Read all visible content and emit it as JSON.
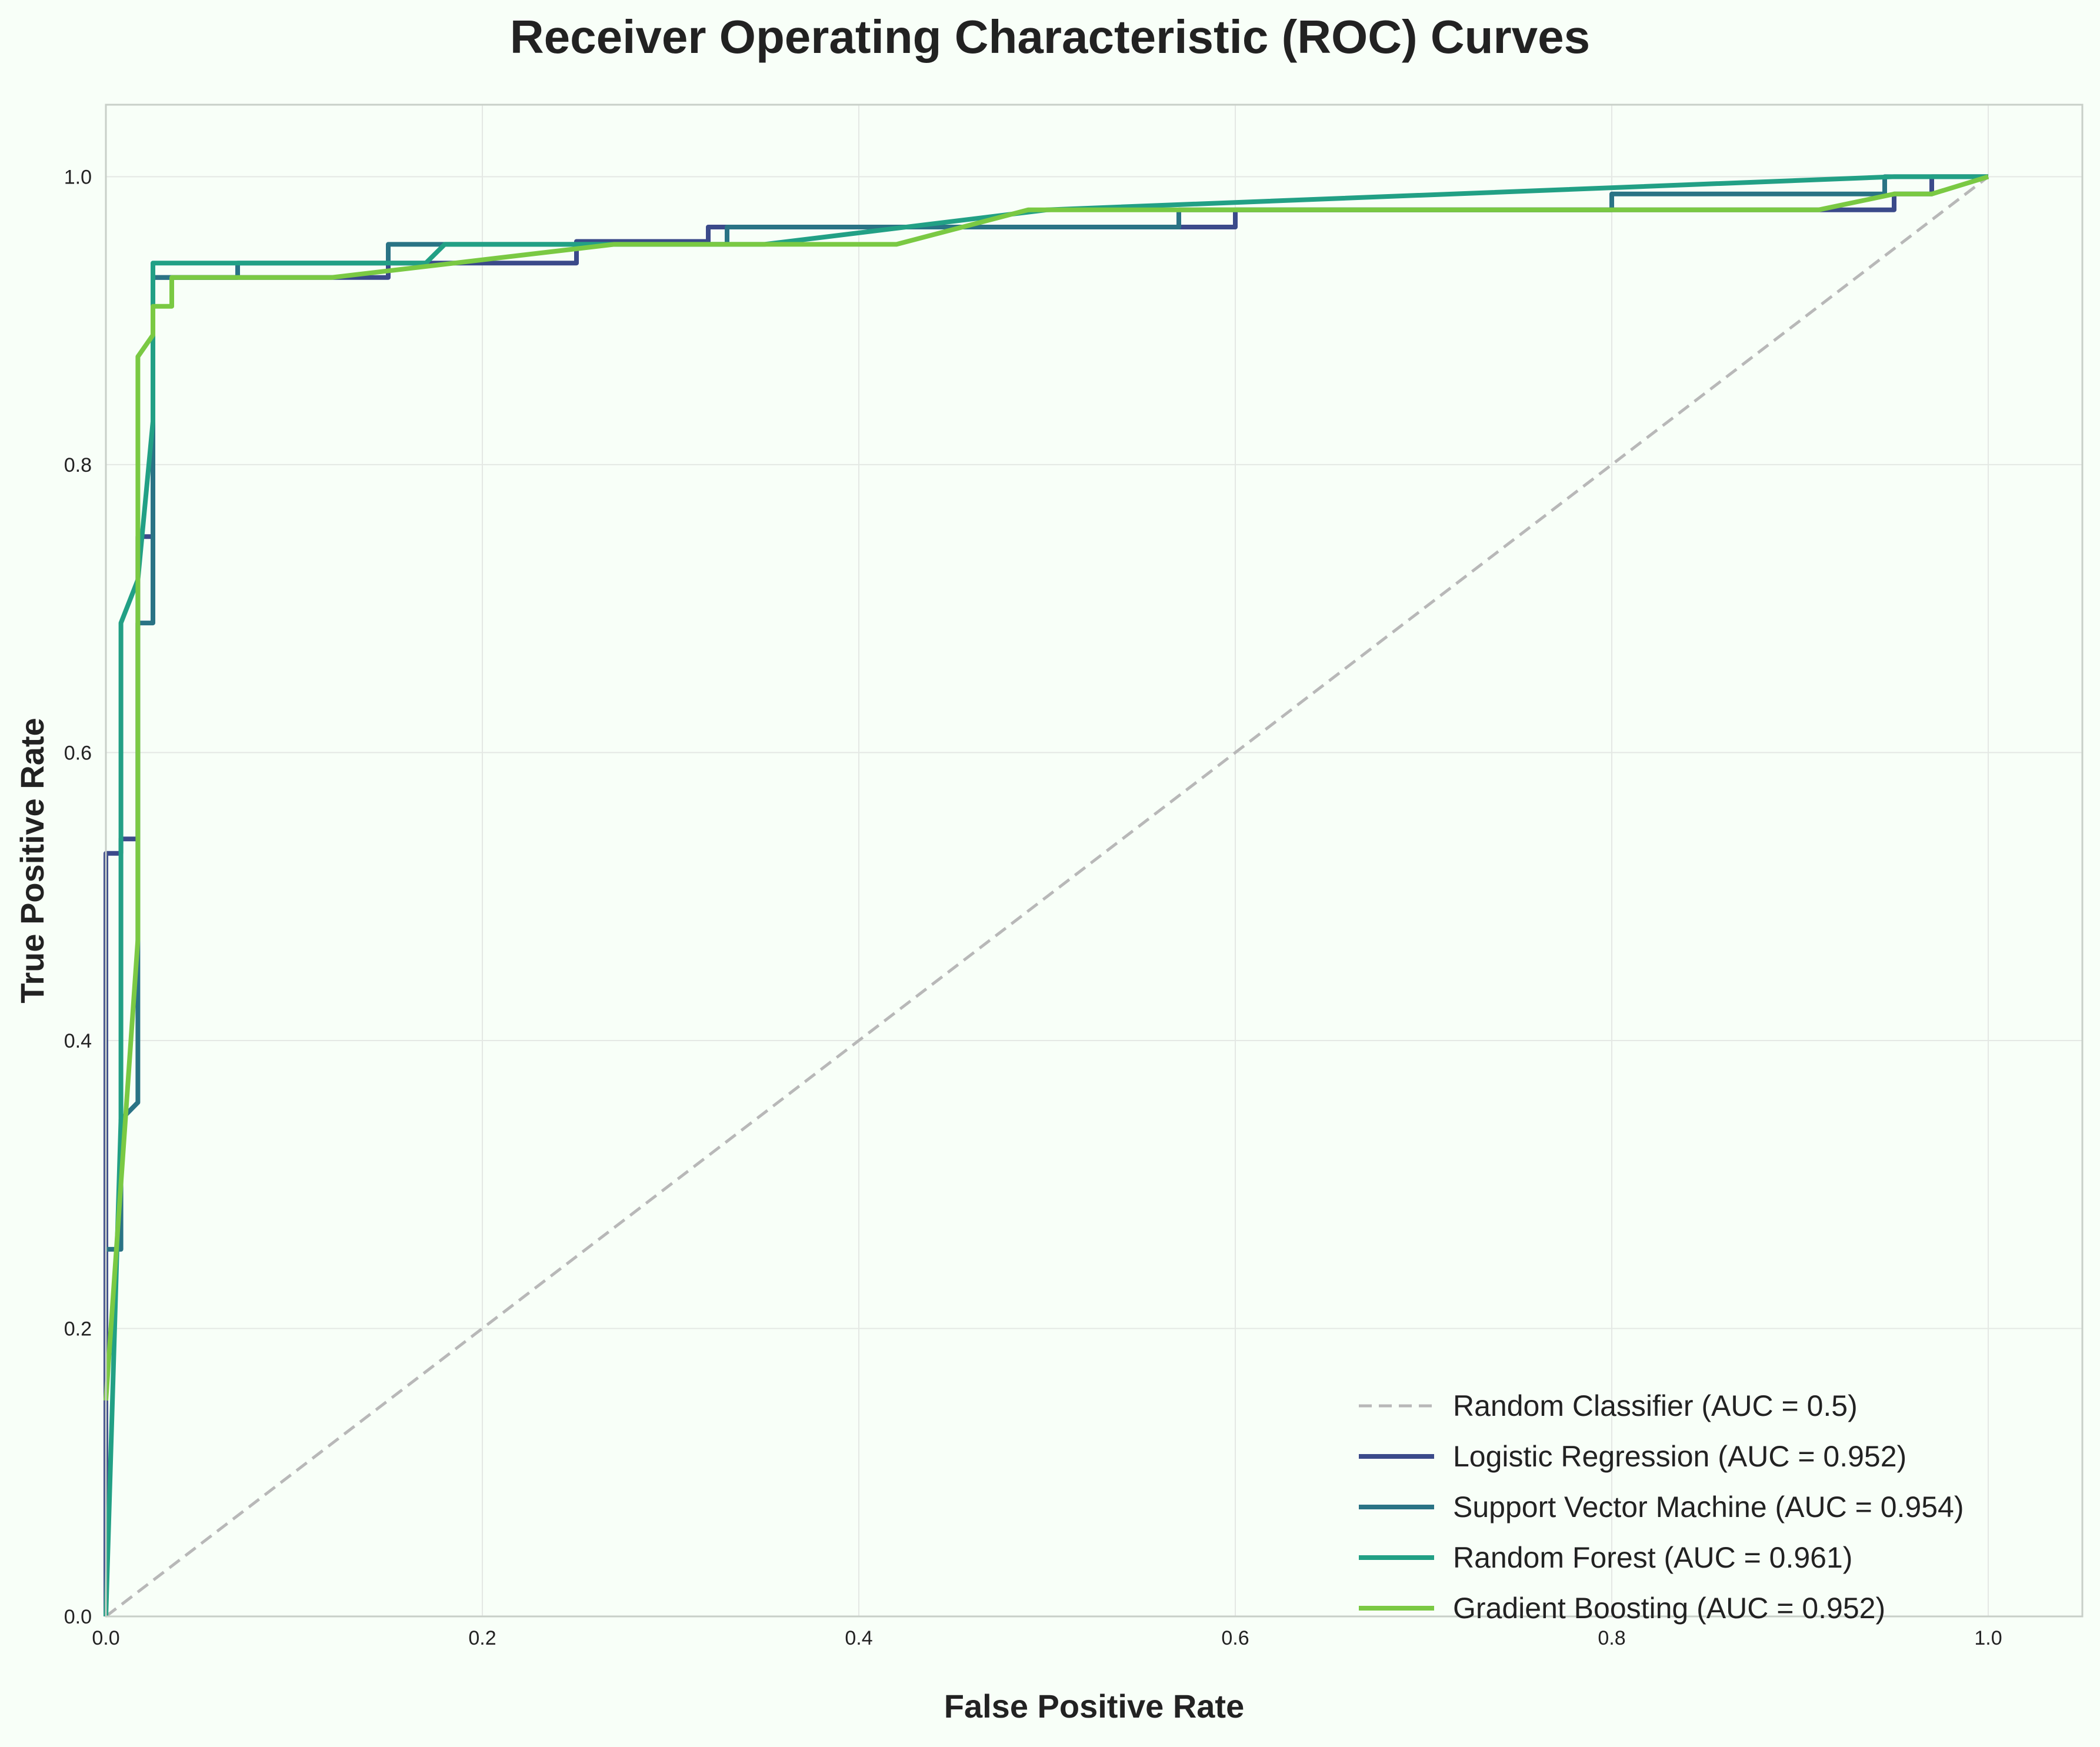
{
  "chart_data": {
    "type": "line",
    "title": "Receiver Operating Characteristic (ROC) Curves",
    "xlabel": "False Positive Rate",
    "ylabel": "True Positive Rate",
    "xlim": [
      0.0,
      1.05
    ],
    "ylim": [
      0.0,
      1.05
    ],
    "xticks": [
      "0.0",
      "0.2",
      "0.4",
      "0.6",
      "0.8",
      "1.0"
    ],
    "yticks": [
      "0.0",
      "0.2",
      "0.4",
      "0.6",
      "0.8",
      "1.0"
    ],
    "grid": true,
    "legend_position": "lower-right",
    "series": [
      {
        "name": "Random Classifier (AUC = 0.5)",
        "color": "#b8b8b8",
        "dashed": true,
        "x": [
          0.0,
          1.0
        ],
        "y": [
          0.0,
          1.0
        ]
      },
      {
        "name": "Logistic Regression (AUC = 0.952)",
        "color": "#3b4a8a",
        "dashed": false,
        "x": [
          0.0,
          0.0,
          0.008,
          0.008,
          0.017,
          0.017,
          0.025,
          0.025,
          0.15,
          0.15,
          0.25,
          0.25,
          0.32,
          0.32,
          0.6,
          0.6,
          0.95,
          0.95,
          0.97,
          0.97,
          1.0
        ],
        "y": [
          0.0,
          0.53,
          0.53,
          0.54,
          0.54,
          0.75,
          0.75,
          0.93,
          0.93,
          0.94,
          0.94,
          0.955,
          0.955,
          0.965,
          0.965,
          0.977,
          0.977,
          0.988,
          0.988,
          1.0,
          1.0
        ]
      },
      {
        "name": "Support Vector Machine (AUC = 0.954)",
        "color": "#2a7385",
        "dashed": false,
        "x": [
          0.0,
          0.008,
          0.008,
          0.017,
          0.017,
          0.025,
          0.025,
          0.07,
          0.07,
          0.15,
          0.15,
          0.33,
          0.33,
          0.57,
          0.57,
          0.8,
          0.8,
          0.945,
          0.945,
          1.0
        ],
        "y": [
          0.255,
          0.255,
          0.345,
          0.357,
          0.69,
          0.69,
          0.93,
          0.93,
          0.94,
          0.94,
          0.953,
          0.953,
          0.965,
          0.965,
          0.977,
          0.977,
          0.988,
          0.988,
          1.0,
          1.0
        ]
      },
      {
        "name": "Random Forest (AUC = 0.961)",
        "color": "#22a085",
        "dashed": false,
        "x": [
          0.0,
          0.008,
          0.008,
          0.017,
          0.025,
          0.025,
          0.17,
          0.18,
          0.35,
          0.5,
          0.95,
          1.0
        ],
        "y": [
          0.0,
          0.345,
          0.69,
          0.72,
          0.83,
          0.94,
          0.94,
          0.953,
          0.953,
          0.977,
          1.0,
          1.0
        ]
      },
      {
        "name": "Gradient Boosting (AUC = 0.952)",
        "color": "#7ac943",
        "dashed": false,
        "x": [
          0.0,
          0.017,
          0.017,
          0.025,
          0.025,
          0.035,
          0.035,
          0.12,
          0.27,
          0.42,
          0.49,
          0.91,
          0.95,
          0.97,
          1.0
        ],
        "y": [
          0.15,
          0.47,
          0.875,
          0.89,
          0.91,
          0.91,
          0.93,
          0.93,
          0.953,
          0.953,
          0.977,
          0.977,
          0.988,
          0.988,
          1.0
        ]
      }
    ]
  }
}
